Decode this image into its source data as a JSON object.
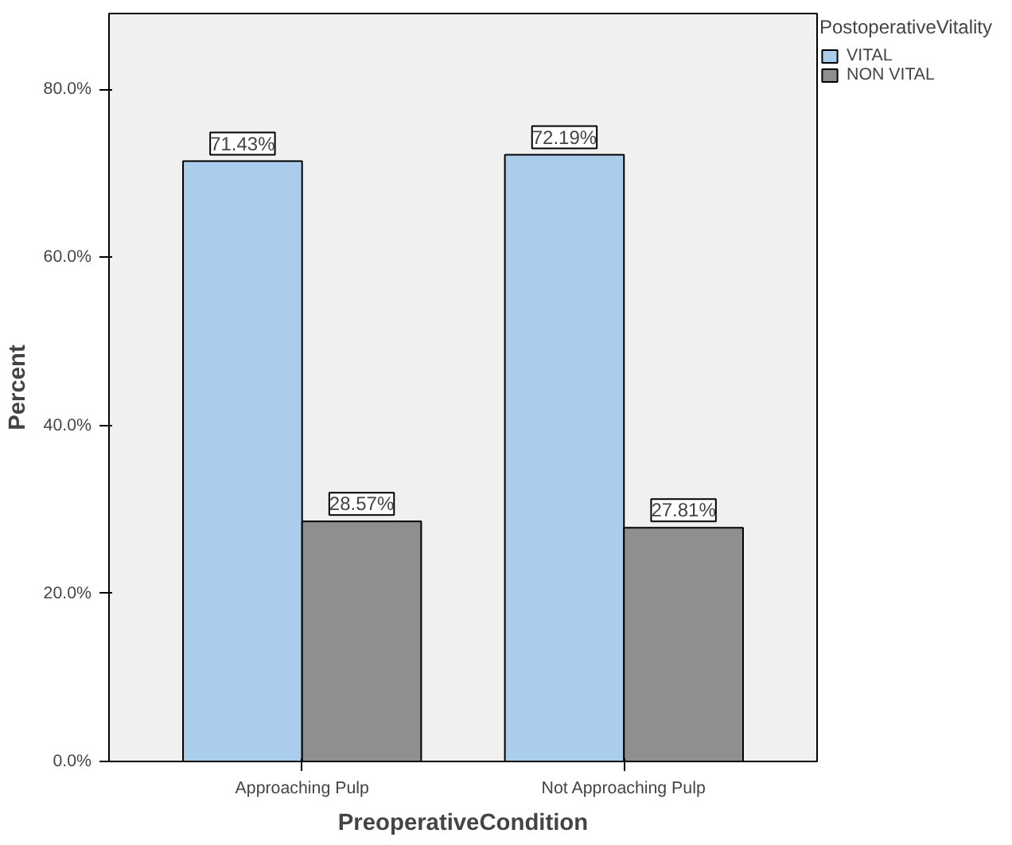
{
  "chart_data": {
    "type": "bar",
    "xlabel": "PreoperativeCondition",
    "ylabel": "Percent",
    "legend_title": "PostoperativeVitality",
    "categories": [
      "Approaching Pulp",
      "Not Approaching Pulp"
    ],
    "series": [
      {
        "name": "VITAL",
        "color": "#abcdec",
        "values": [
          71.43,
          72.19
        ],
        "value_labels": [
          "71.43%",
          "72.19%"
        ]
      },
      {
        "name": "NON VITAL",
        "color": "#8f8f8f",
        "values": [
          28.57,
          27.81
        ],
        "value_labels": [
          "28.57%",
          "27.81%"
        ]
      }
    ],
    "ylim": [
      0,
      89
    ],
    "yticks": [
      {
        "value": 0,
        "label": "0.0%"
      },
      {
        "value": 20,
        "label": "20.0%"
      },
      {
        "value": 40,
        "label": "40.0%"
      },
      {
        "value": 60,
        "label": "60.0%"
      },
      {
        "value": 80,
        "label": "80.0%"
      }
    ],
    "grid": false,
    "legend": "top right"
  }
}
